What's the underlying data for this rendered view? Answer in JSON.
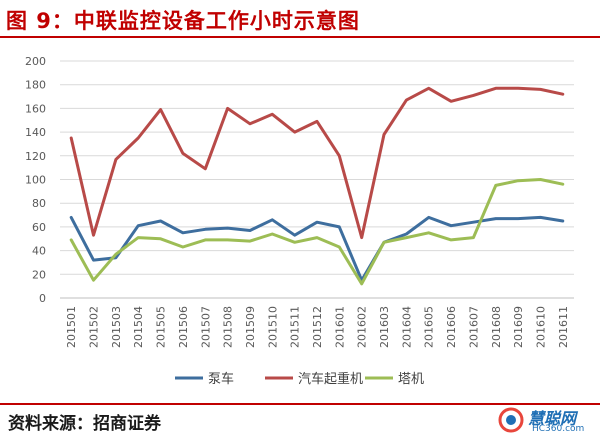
{
  "title": "图 9：中联监控设备工作小时示意图",
  "source": "资料来源：招商证券",
  "watermark": {
    "name": "慧聪网",
    "site": "HC360.com"
  },
  "chart_data": {
    "type": "line",
    "categories": [
      "201501",
      "201502",
      "201503",
      "201504",
      "201505",
      "201506",
      "201507",
      "201508",
      "201509",
      "201510",
      "201511",
      "201512",
      "201601",
      "201602",
      "201603",
      "201604",
      "201605",
      "201606",
      "201607",
      "201608",
      "201609",
      "201610",
      "201611"
    ],
    "ylim": [
      0,
      200
    ],
    "yticks": [
      0,
      20,
      40,
      60,
      80,
      100,
      120,
      140,
      160,
      180,
      200
    ],
    "grid": true,
    "legend_position": "bottom",
    "series": [
      {
        "name": "泵车",
        "color": "#3e6e9e",
        "values": [
          68,
          32,
          34,
          61,
          65,
          55,
          58,
          59,
          57,
          66,
          53,
          64,
          60,
          15,
          47,
          54,
          68,
          61,
          64,
          67,
          67,
          68,
          65
        ]
      },
      {
        "name": "汽车起重机",
        "color": "#b84a48",
        "values": [
          135,
          53,
          117,
          135,
          159,
          122,
          109,
          160,
          147,
          155,
          140,
          149,
          120,
          51,
          138,
          167,
          177,
          166,
          171,
          177,
          177,
          176,
          172
        ]
      },
      {
        "name": "塔机",
        "color": "#9dbd55",
        "values": [
          49,
          15,
          37,
          51,
          50,
          43,
          49,
          49,
          48,
          54,
          47,
          51,
          43,
          12,
          47,
          51,
          55,
          49,
          51,
          95,
          99,
          100,
          96
        ]
      }
    ]
  }
}
